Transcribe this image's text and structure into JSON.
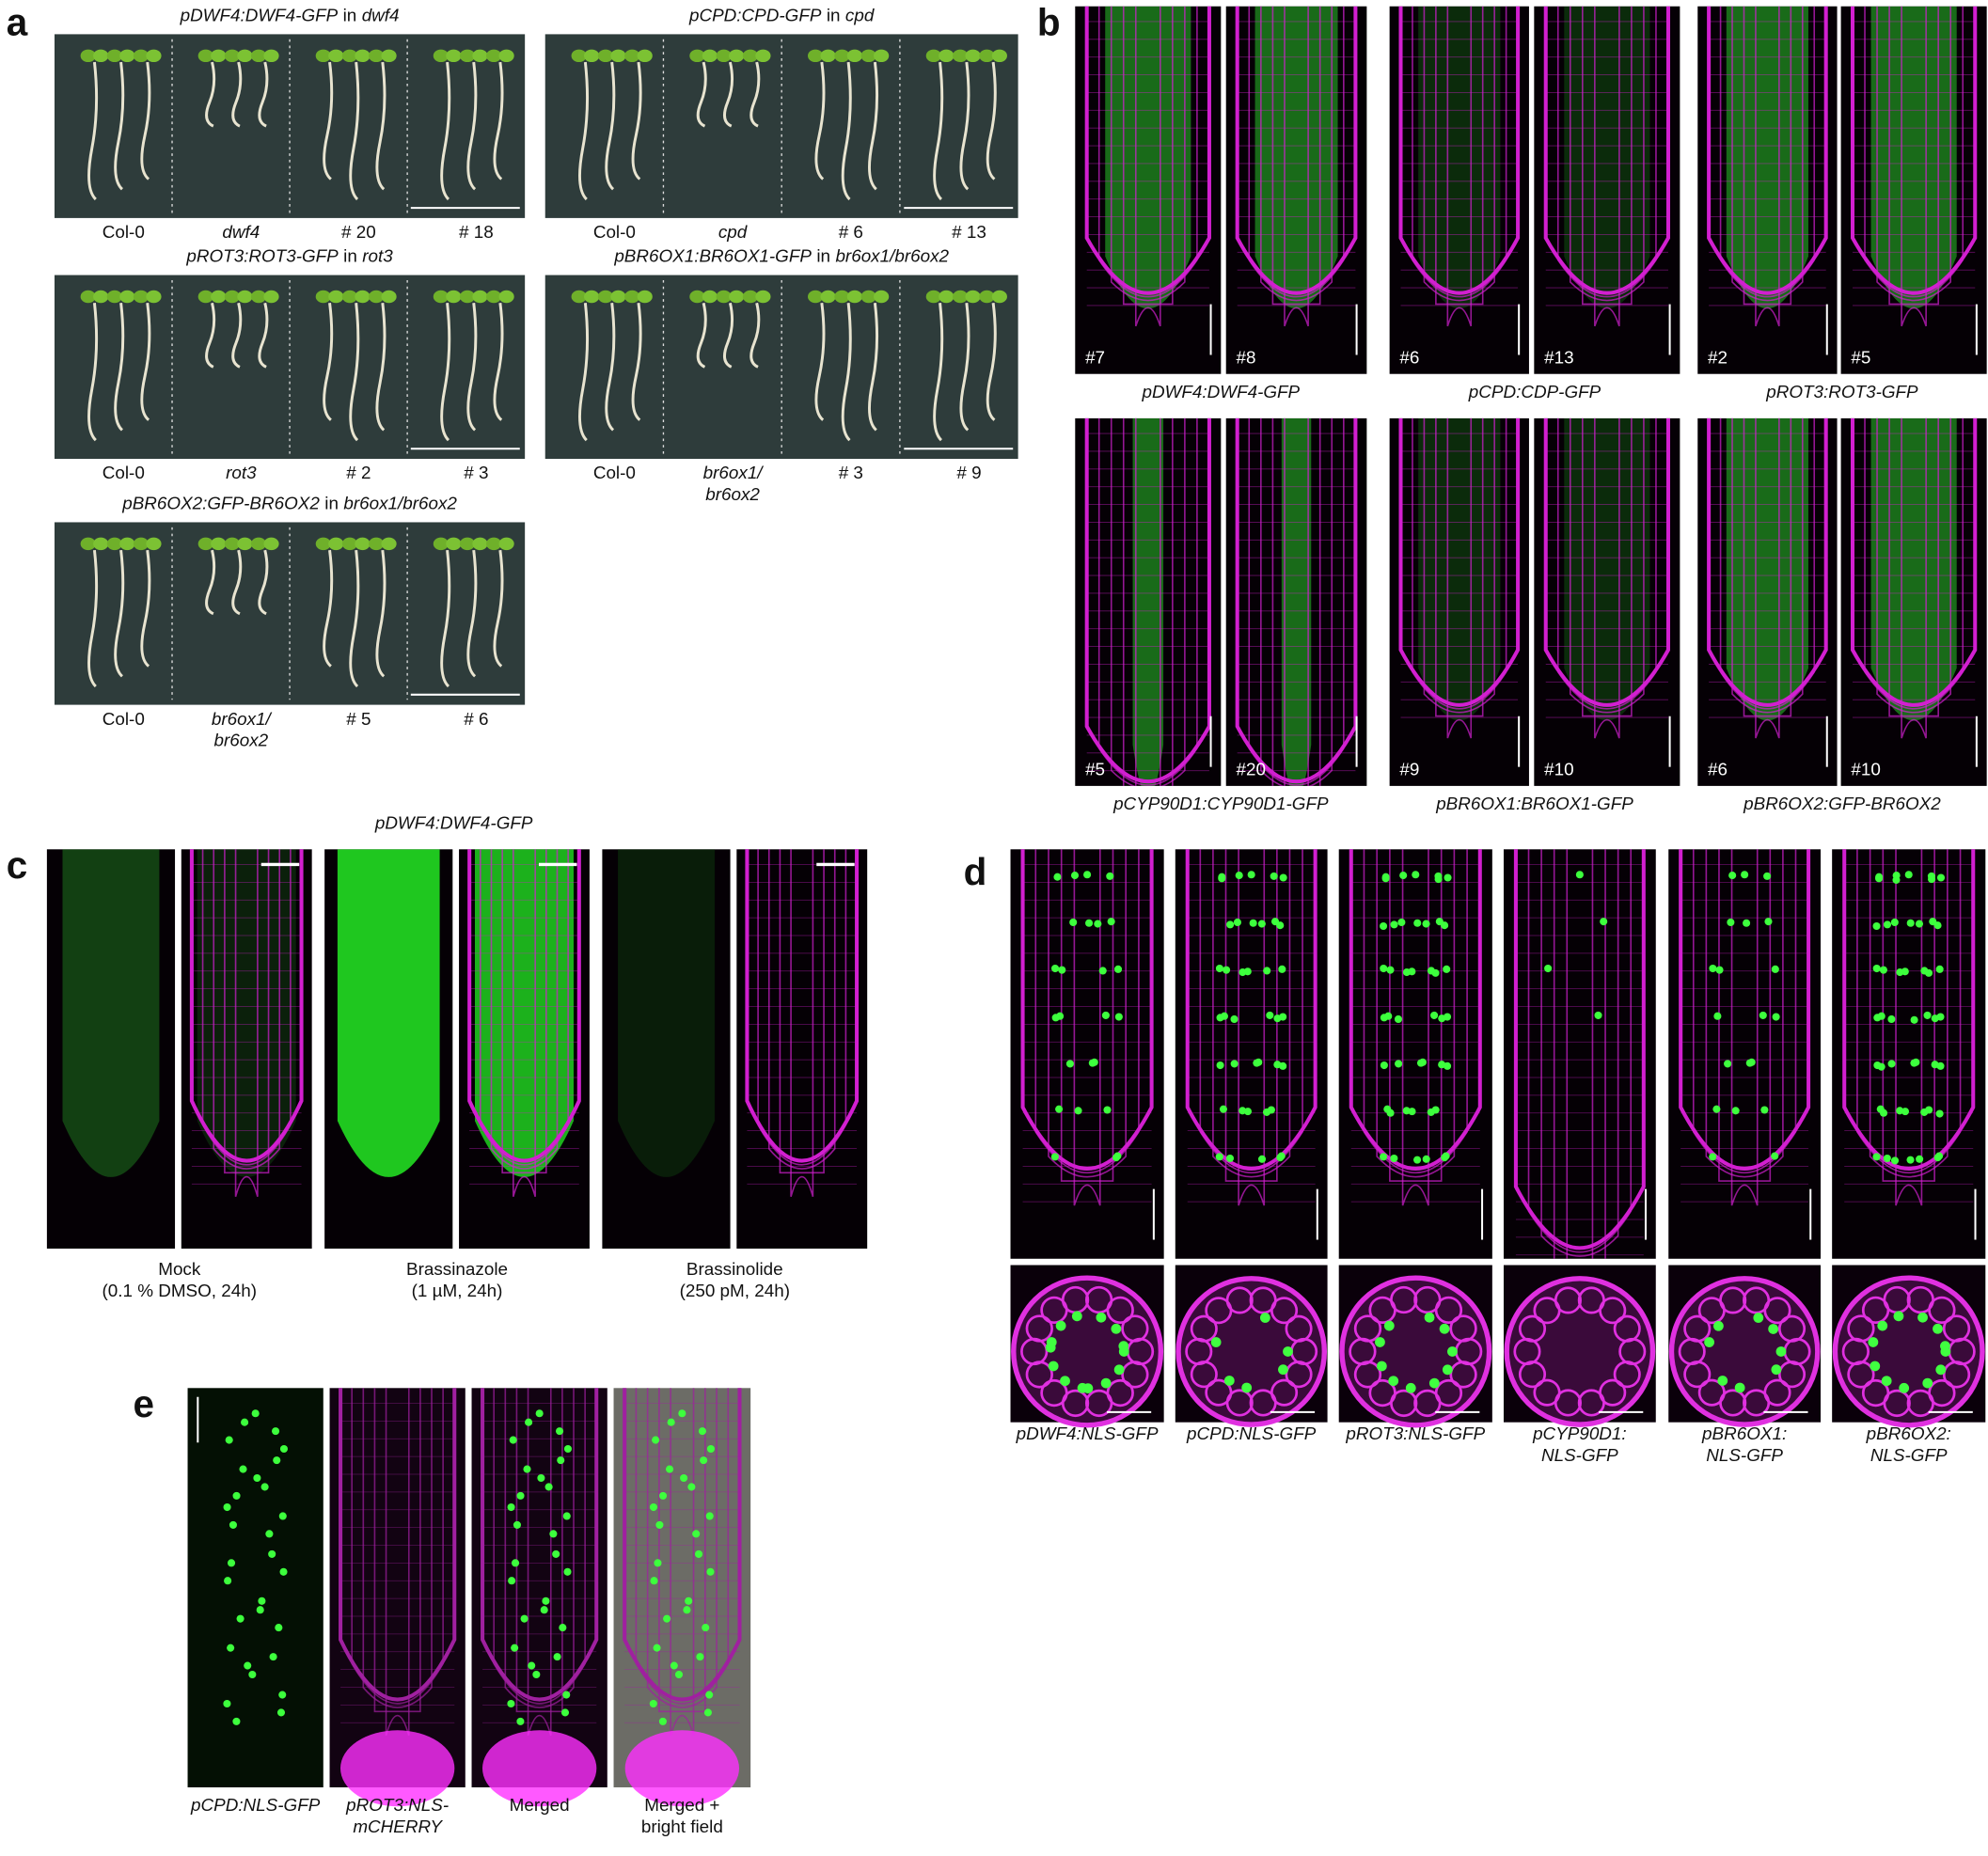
{
  "panel_a": {
    "letter": "a",
    "groups": [
      {
        "title": {
          "construct": "pDWF4:DWF4-GFP",
          "joiner": "in",
          "background": "dwf4"
        },
        "labels": [
          "Col-0",
          "dwf4",
          "# 20",
          "# 18"
        ]
      },
      {
        "title": {
          "construct": "pCPD:CPD-GFP",
          "joiner": "in",
          "background": "cpd"
        },
        "labels": [
          "Col-0",
          "cpd",
          "# 6",
          "# 13"
        ]
      },
      {
        "title": {
          "construct": "pROT3:ROT3-GFP",
          "joiner": "in",
          "background": "rot3"
        },
        "labels": [
          "Col-0",
          "rot3",
          "# 2",
          "# 3"
        ]
      },
      {
        "title": {
          "construct": "pBR6OX1:BR6OX1-GFP",
          "joiner": "in",
          "background": "br6ox1/br6ox2"
        },
        "labels": [
          "Col-0",
          [
            "br6ox1/",
            "br6ox2"
          ],
          "# 3",
          "# 9"
        ]
      },
      {
        "title": {
          "construct": "pBR6OX2:GFP-BR6OX2",
          "joiner": "in",
          "background": "br6ox1/br6ox2"
        },
        "labels": [
          "Col-0",
          [
            "br6ox1/",
            "br6ox2"
          ],
          "# 5",
          "# 6"
        ]
      }
    ]
  },
  "panel_b": {
    "letter": "b",
    "groups": [
      {
        "lines": [
          "#7",
          "#8"
        ],
        "caption": "pDWF4:DWF4-GFP"
      },
      {
        "lines": [
          "#6",
          "#13"
        ],
        "caption": "pCPD:CDP-GFP"
      },
      {
        "lines": [
          "#2",
          "#5"
        ],
        "caption": "pROT3:ROT3-GFP"
      },
      {
        "lines": [
          "#5",
          "#20"
        ],
        "caption": "pCYP90D1:CYP90D1-GFP"
      },
      {
        "lines": [
          "#9",
          "#10"
        ],
        "caption": "pBR6OX1:BR6OX1-GFP"
      },
      {
        "lines": [
          "#6",
          "#10"
        ],
        "caption": "pBR6OX2:GFP-BR6OX2"
      }
    ]
  },
  "panel_c": {
    "letter": "c",
    "title": "pDWF4:DWF4-GFP",
    "captions": [
      [
        "Mock",
        "(0.1 % DMSO, 24h)"
      ],
      [
        "Brassinazole",
        "(1 µM, 24h)"
      ],
      [
        "Brassinolide",
        "(250 pM, 24h)"
      ]
    ]
  },
  "panel_d": {
    "letter": "d",
    "captions": [
      [
        "pDWF4:NLS-GFP"
      ],
      [
        "pCPD:NLS-GFP"
      ],
      [
        "pROT3:NLS-GFP"
      ],
      [
        "pCYP90D1:",
        "NLS-GFP"
      ],
      [
        "pBR6OX1:",
        "NLS-GFP"
      ],
      [
        "pBR6OX2:",
        "NLS-GFP"
      ]
    ]
  },
  "panel_e": {
    "letter": "e",
    "captions": [
      [
        "pCPD:NLS-GFP"
      ],
      [
        "pROT3:NLS-",
        "mCHERRY"
      ],
      [
        "Merged"
      ],
      [
        "Merged +",
        "bright field"
      ]
    ]
  }
}
